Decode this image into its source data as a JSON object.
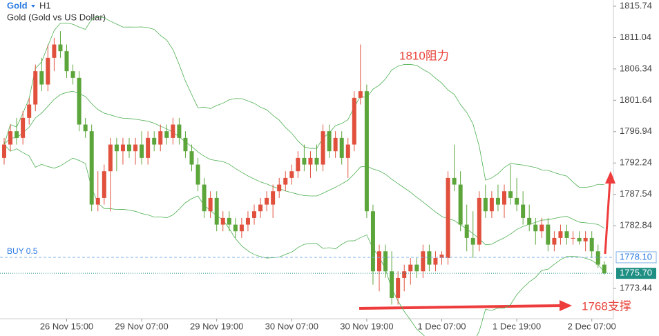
{
  "chart_data": {
    "type": "candlestick",
    "symbol": "Gold",
    "timeframe": "H1",
    "description": "Gold (Gold vs US Dollar)",
    "up_color": "#e0503c",
    "down_color": "#5ba53a",
    "ylim": [
      1768.89,
      1816.67
    ],
    "yticks": [
      1815.74,
      1811.04,
      1806.34,
      1801.64,
      1796.94,
      1792.24,
      1787.54,
      1782.84,
      1773.44
    ],
    "categories": [
      null,
      null,
      null,
      null,
      null,
      null,
      null,
      null,
      null,
      null,
      "26 Nov 15:00",
      null,
      null,
      null,
      null,
      null,
      null,
      null,
      null,
      null,
      null,
      null,
      "29 Nov 07:00",
      null,
      null,
      null,
      null,
      null,
      null,
      null,
      null,
      null,
      null,
      null,
      "29 Nov 19:00",
      null,
      null,
      null,
      null,
      null,
      null,
      null,
      null,
      null,
      null,
      null,
      "30 Nov 07:00",
      null,
      null,
      null,
      null,
      null,
      null,
      null,
      null,
      null,
      null,
      null,
      "30 Nov 19:00",
      null,
      null,
      null,
      null,
      null,
      null,
      null,
      null,
      null,
      null,
      null,
      "1 Dec 07:00",
      null,
      null,
      null,
      null,
      null,
      null,
      null,
      null,
      null,
      null,
      null,
      "1 Dec 19:00",
      null,
      null,
      null,
      null,
      null,
      null,
      null,
      null,
      null,
      null,
      null,
      "2 Dec 07:00",
      null,
      null
    ],
    "candles": [
      [
        1793,
        1796,
        1792,
        1795
      ],
      [
        1795,
        1798,
        1794,
        1797
      ],
      [
        1797,
        1799,
        1795,
        1796
      ],
      [
        1796,
        1800,
        1795,
        1799
      ],
      [
        1799,
        1802,
        1798,
        1801
      ],
      [
        1801,
        1807,
        1800,
        1806
      ],
      [
        1806,
        1808,
        1803,
        1804
      ],
      [
        1804,
        1810,
        1803,
        1808
      ],
      [
        1808,
        1811,
        1806,
        1810
      ],
      [
        1810,
        1812,
        1808,
        1809
      ],
      [
        1809,
        1810,
        1805,
        1806
      ],
      [
        1806,
        1807,
        1804,
        1805
      ],
      [
        1805,
        1806,
        1797,
        1798
      ],
      [
        1798,
        1799,
        1796,
        1797
      ],
      [
        1797,
        1798,
        1785,
        1786
      ],
      [
        1786,
        1791,
        1785,
        1787
      ],
      [
        1787,
        1792,
        1786,
        1791
      ],
      [
        1791,
        1796,
        1785,
        1795
      ],
      [
        1795,
        1796,
        1791,
        1794
      ],
      [
        1794,
        1796,
        1792,
        1795
      ],
      [
        1795,
        1796,
        1793,
        1794
      ],
      [
        1794,
        1796,
        1792,
        1795
      ],
      [
        1795,
        1797,
        1792,
        1793
      ],
      [
        1793,
        1797,
        1792,
        1796
      ],
      [
        1796,
        1797,
        1794,
        1795
      ],
      [
        1795,
        1798,
        1794,
        1797
      ],
      [
        1797,
        1798,
        1795,
        1796
      ],
      [
        1796,
        1799,
        1795,
        1798
      ],
      [
        1798,
        1799,
        1795,
        1796
      ],
      [
        1796,
        1797,
        1793,
        1794
      ],
      [
        1794,
        1795,
        1791,
        1792
      ],
      [
        1792,
        1793,
        1788,
        1789
      ],
      [
        1789,
        1790,
        1784,
        1785
      ],
      [
        1785,
        1788,
        1784,
        1787
      ],
      [
        1787,
        1788,
        1782,
        1783
      ],
      [
        1783,
        1785,
        1782,
        1784
      ],
      [
        1784,
        1785,
        1782,
        1783
      ],
      [
        1783,
        1784,
        1781,
        1782
      ],
      [
        1782,
        1784,
        1781,
        1783
      ],
      [
        1783,
        1785,
        1782,
        1784
      ],
      [
        1784,
        1786,
        1783,
        1785
      ],
      [
        1785,
        1787,
        1784,
        1786
      ],
      [
        1786,
        1788,
        1785,
        1787
      ],
      [
        1786,
        1789,
        1784,
        1788
      ],
      [
        1788,
        1790,
        1787,
        1789
      ],
      [
        1789,
        1791,
        1788,
        1790
      ],
      [
        1790,
        1792,
        1789,
        1791
      ],
      [
        1791,
        1794,
        1790,
        1793
      ],
      [
        1793,
        1795,
        1791,
        1792
      ],
      [
        1792,
        1794,
        1790,
        1793
      ],
      [
        1793,
        1795,
        1791,
        1792
      ],
      [
        1792,
        1798,
        1791,
        1797
      ],
      [
        1797,
        1798,
        1793,
        1794
      ],
      [
        1794,
        1797,
        1793,
        1796
      ],
      [
        1796,
        1797,
        1792,
        1793
      ],
      [
        1793,
        1796,
        1790,
        1795
      ],
      [
        1795,
        1803,
        1794,
        1802
      ],
      [
        1802,
        1810,
        1801,
        1803
      ],
      [
        1803,
        1804,
        1784,
        1785
      ],
      [
        1785,
        1786,
        1774,
        1776
      ],
      [
        1776,
        1780,
        1773,
        1779
      ],
      [
        1779,
        1780,
        1775,
        1776
      ],
      [
        1776,
        1779,
        1771,
        1772
      ],
      [
        1772,
        1776,
        1771,
        1775
      ],
      [
        1775,
        1777,
        1773,
        1776
      ],
      [
        1776,
        1778,
        1774,
        1777
      ],
      [
        1777,
        1778,
        1775,
        1776
      ],
      [
        1776,
        1780,
        1775,
        1779
      ],
      [
        1779,
        1780,
        1776,
        1777
      ],
      [
        1777,
        1779,
        1776,
        1778
      ],
      [
        1778,
        1779,
        1777,
        1778.5
      ],
      [
        1778,
        1791,
        1777,
        1790
      ],
      [
        1790,
        1795,
        1788,
        1789
      ],
      [
        1789,
        1791,
        1782,
        1783
      ],
      [
        1783,
        1786,
        1779,
        1781
      ],
      [
        1781,
        1785,
        1778,
        1780
      ],
      [
        1780,
        1788,
        1779,
        1787
      ],
      [
        1787,
        1789,
        1784,
        1785
      ],
      [
        1785,
        1788,
        1784,
        1787
      ],
      [
        1787,
        1789,
        1785,
        1786
      ],
      [
        1786,
        1789,
        1784,
        1788
      ],
      [
        1788,
        1792,
        1786,
        1787
      ],
      [
        1787,
        1790,
        1785,
        1786
      ],
      [
        1786,
        1788,
        1783,
        1784
      ],
      [
        1784,
        1786,
        1782,
        1783
      ],
      [
        1783,
        1784,
        1780,
        1782
      ],
      [
        1782,
        1784,
        1781,
        1783
      ],
      [
        1783,
        1784,
        1779,
        1780
      ],
      [
        1780,
        1782,
        1779,
        1781
      ],
      [
        1781,
        1783,
        1780,
        1782
      ],
      [
        1782,
        1783,
        1780,
        1781
      ],
      [
        1781,
        1782,
        1780,
        1781
      ],
      [
        1781,
        1782,
        1780,
        1780.5
      ],
      [
        1780.5,
        1782,
        1779,
        1781
      ],
      [
        1781,
        1782,
        1778,
        1779
      ],
      [
        1779,
        1780,
        1776.5,
        1777
      ],
      [
        1777,
        1777.5,
        1775.5,
        1775.7
      ]
    ],
    "order_line": {
      "label": "BUY 0.5",
      "price": {
        "value": 1778.1,
        "label": "1778.10"
      }
    },
    "current_price": {
      "value": 1775.7,
      "label": "1775.70"
    },
    "annotations": [
      "1810阻力",
      "1768支撑"
    ]
  }
}
